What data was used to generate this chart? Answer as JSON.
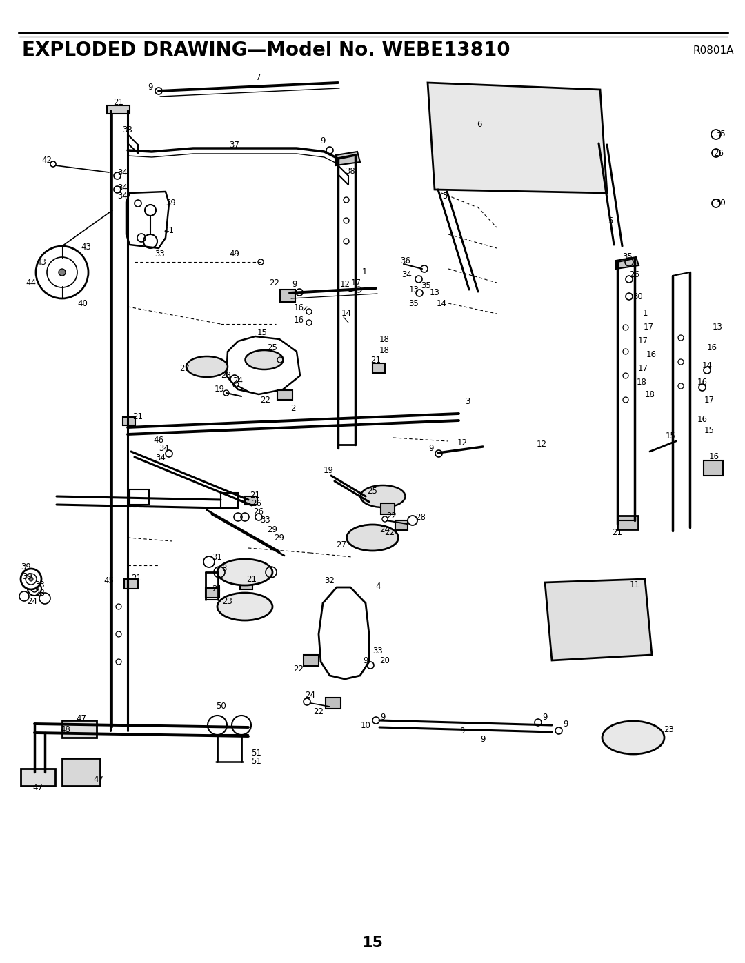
{
  "title": "EXPLODED DRAWING—Model No. WEBE13810",
  "subtitle": "R0801A",
  "page_number": "15",
  "bg_color": "#ffffff",
  "line_color": "#000000",
  "title_fontsize": 20,
  "subtitle_fontsize": 11,
  "page_number_fontsize": 16,
  "figsize": [
    10.8,
    13.97
  ],
  "dpi": 100
}
